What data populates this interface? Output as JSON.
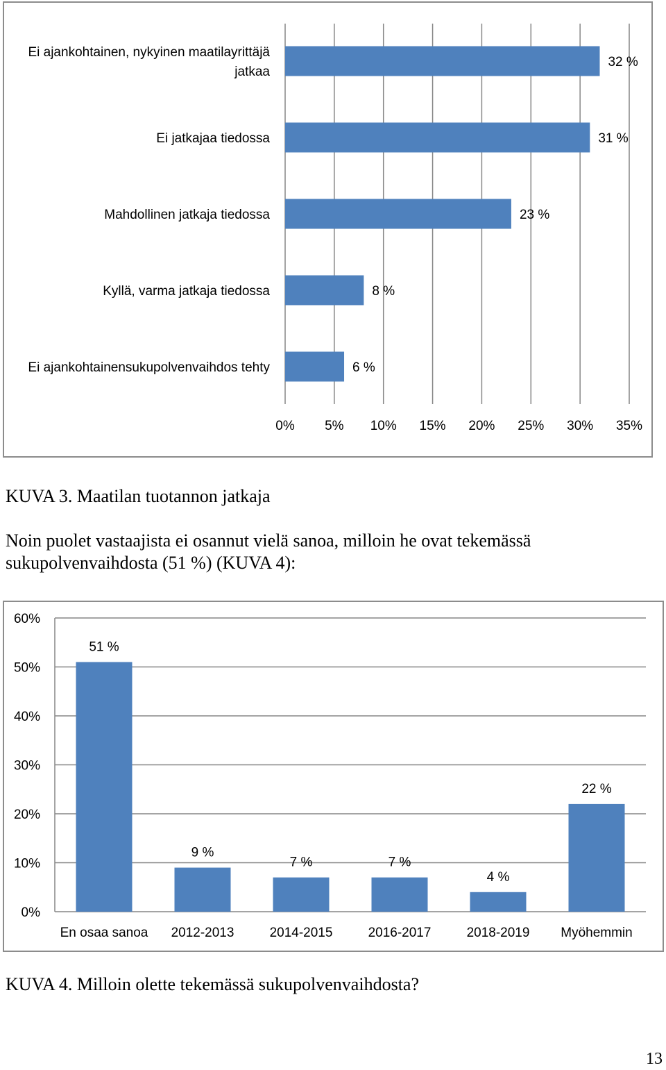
{
  "chart_data": [
    {
      "type": "bar",
      "orientation": "horizontal",
      "categories": [
        "Ei ajankohtainen, nykyinen maatilayrittäjä jatkaa",
        "Ei jatkajaa tiedossa",
        "Mahdollinen jatkaja tiedossa",
        "Kyllä, varma jatkaja tiedossa",
        "Ei ajankohtainensukupolvenvaihdos tehty"
      ],
      "category_lines": [
        [
          "Ei ajankohtainen, nykyinen maatilayrittäjä",
          "jatkaa"
        ],
        [
          "Ei jatkajaa tiedossa"
        ],
        [
          "Mahdollinen jatkaja tiedossa"
        ],
        [
          "Kyllä, varma jatkaja tiedossa"
        ],
        [
          "Ei ajankohtainensukupolvenvaihdos tehty"
        ]
      ],
      "values": [
        32,
        31,
        23,
        8,
        6
      ],
      "data_labels": [
        "32 %",
        "31 %",
        "23 %",
        "8 %",
        "6 %"
      ],
      "xlim": [
        0,
        35
      ],
      "xticks": [
        "0%",
        "5%",
        "10%",
        "15%",
        "20%",
        "25%",
        "30%",
        "35%"
      ],
      "grid": "vertical",
      "bar_color": "#4F81BD"
    },
    {
      "type": "bar",
      "orientation": "vertical",
      "categories": [
        "En osaa sanoa",
        "2012-2013",
        "2014-2015",
        "2016-2017",
        "2018-2019",
        "Myöhemmin"
      ],
      "values": [
        51,
        9,
        7,
        7,
        4,
        22
      ],
      "data_labels": [
        "51 %",
        "9 %",
        "7 %",
        "7 %",
        "4 %",
        "22 %"
      ],
      "ylim": [
        0,
        60
      ],
      "yticks": [
        "0%",
        "10%",
        "20%",
        "30%",
        "40%",
        "50%",
        "60%"
      ],
      "grid": "horizontal",
      "bar_color": "#4F81BD"
    }
  ],
  "text": {
    "caption3": "KUVA 3. Maatilan tuotannon jatkaja",
    "paragraph": "Noin puolet vastaajista ei osannut vielä sanoa, milloin he ovat tekemässä sukupolvenvaihdosta (51 %) (KUVA 4):",
    "caption4": "KUVA 4. Milloin olette tekemässä sukupolvenvaihdosta?",
    "page_number": "13"
  }
}
